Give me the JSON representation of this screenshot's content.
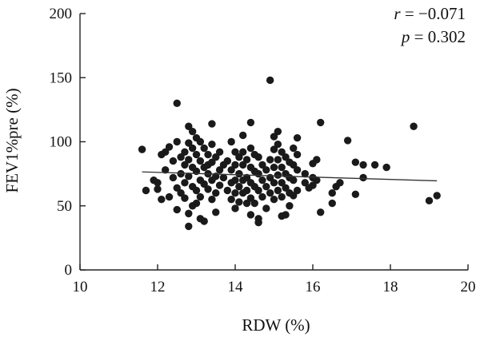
{
  "chart_data": {
    "type": "scatter",
    "xlabel": "RDW (%)",
    "ylabel": "FEV1%pre (%)",
    "xlim": [
      10,
      20
    ],
    "ylim": [
      0,
      200
    ],
    "xticks": [
      "10",
      "12",
      "14",
      "16",
      "18",
      "20"
    ],
    "yticks": [
      "0",
      "50",
      "100",
      "150",
      "200"
    ],
    "grid": false,
    "legend": "none",
    "annotations": {
      "r_var": "r",
      "r_value": " = −0.071",
      "p_var": "p",
      "p_value": " = 0.302"
    },
    "trendline": {
      "x": [
        11.6,
        19.2
      ],
      "y": [
        76.5,
        69.5
      ]
    },
    "colors": {
      "points": "#1a1a1a",
      "trendline": "#333333",
      "axis": "#222222"
    },
    "points": [
      [
        11.6,
        94
      ],
      [
        11.7,
        62
      ],
      [
        11.9,
        70
      ],
      [
        12.0,
        68
      ],
      [
        12.0,
        63
      ],
      [
        12.1,
        55
      ],
      [
        12.1,
        90
      ],
      [
        12.2,
        92
      ],
      [
        12.2,
        78
      ],
      [
        12.3,
        57
      ],
      [
        12.3,
        96
      ],
      [
        12.4,
        85
      ],
      [
        12.4,
        72
      ],
      [
        12.5,
        64
      ],
      [
        12.5,
        100
      ],
      [
        12.5,
        130
      ],
      [
        12.5,
        47
      ],
      [
        12.6,
        88
      ],
      [
        12.6,
        75
      ],
      [
        12.6,
        60
      ],
      [
        12.7,
        92
      ],
      [
        12.7,
        82
      ],
      [
        12.7,
        68
      ],
      [
        12.7,
        56
      ],
      [
        12.8,
        112
      ],
      [
        12.8,
        99
      ],
      [
        12.8,
        86
      ],
      [
        12.8,
        73
      ],
      [
        12.8,
        44
      ],
      [
        12.8,
        34
      ],
      [
        12.9,
        108
      ],
      [
        12.9,
        95
      ],
      [
        12.9,
        80
      ],
      [
        12.9,
        65
      ],
      [
        12.9,
        50
      ],
      [
        13.0,
        103
      ],
      [
        13.0,
        90
      ],
      [
        13.0,
        77
      ],
      [
        13.0,
        62
      ],
      [
        13.0,
        52
      ],
      [
        13.1,
        100
      ],
      [
        13.1,
        85
      ],
      [
        13.1,
        70
      ],
      [
        13.1,
        57
      ],
      [
        13.1,
        40
      ],
      [
        13.2,
        95
      ],
      [
        13.2,
        80
      ],
      [
        13.2,
        67
      ],
      [
        13.2,
        38
      ],
      [
        13.3,
        90
      ],
      [
        13.3,
        82
      ],
      [
        13.3,
        75
      ],
      [
        13.3,
        63
      ],
      [
        13.4,
        114
      ],
      [
        13.4,
        98
      ],
      [
        13.4,
        84
      ],
      [
        13.4,
        70
      ],
      [
        13.4,
        55
      ],
      [
        13.5,
        88
      ],
      [
        13.5,
        73
      ],
      [
        13.5,
        60
      ],
      [
        13.5,
        45
      ],
      [
        13.6,
        92
      ],
      [
        13.6,
        78
      ],
      [
        13.6,
        66
      ],
      [
        13.7,
        82
      ],
      [
        13.7,
        72
      ],
      [
        13.8,
        85
      ],
      [
        13.8,
        62
      ],
      [
        13.9,
        100
      ],
      [
        13.9,
        78
      ],
      [
        13.9,
        68
      ],
      [
        13.9,
        55
      ],
      [
        14.0,
        92
      ],
      [
        14.0,
        82
      ],
      [
        14.0,
        70
      ],
      [
        14.0,
        60
      ],
      [
        14.0,
        48
      ],
      [
        14.1,
        88
      ],
      [
        14.1,
        75
      ],
      [
        14.1,
        65
      ],
      [
        14.1,
        53
      ],
      [
        14.2,
        105
      ],
      [
        14.2,
        92
      ],
      [
        14.2,
        82
      ],
      [
        14.2,
        70
      ],
      [
        14.2,
        60
      ],
      [
        14.3,
        86
      ],
      [
        14.3,
        72
      ],
      [
        14.3,
        62
      ],
      [
        14.3,
        52
      ],
      [
        14.4,
        115
      ],
      [
        14.4,
        95
      ],
      [
        14.4,
        80
      ],
      [
        14.4,
        68
      ],
      [
        14.4,
        56
      ],
      [
        14.4,
        43
      ],
      [
        14.5,
        90
      ],
      [
        14.5,
        77
      ],
      [
        14.5,
        65
      ],
      [
        14.5,
        52
      ],
      [
        14.6,
        88
      ],
      [
        14.6,
        75
      ],
      [
        14.6,
        62
      ],
      [
        14.6,
        40
      ],
      [
        14.6,
        37
      ],
      [
        14.7,
        82
      ],
      [
        14.7,
        70
      ],
      [
        14.7,
        57
      ],
      [
        14.8,
        78
      ],
      [
        14.8,
        65
      ],
      [
        14.8,
        48
      ],
      [
        14.9,
        148
      ],
      [
        14.9,
        86
      ],
      [
        14.9,
        72
      ],
      [
        14.9,
        60
      ],
      [
        15.0,
        104
      ],
      [
        15.0,
        94
      ],
      [
        15.0,
        80
      ],
      [
        15.0,
        68
      ],
      [
        15.0,
        55
      ],
      [
        15.1,
        108
      ],
      [
        15.1,
        98
      ],
      [
        15.1,
        86
      ],
      [
        15.1,
        74
      ],
      [
        15.1,
        62
      ],
      [
        15.2,
        92
      ],
      [
        15.2,
        80
      ],
      [
        15.2,
        68
      ],
      [
        15.2,
        57
      ],
      [
        15.2,
        42
      ],
      [
        15.3,
        88
      ],
      [
        15.3,
        75
      ],
      [
        15.3,
        64
      ],
      [
        15.3,
        43
      ],
      [
        15.4,
        84
      ],
      [
        15.4,
        72
      ],
      [
        15.4,
        60
      ],
      [
        15.4,
        50
      ],
      [
        15.5,
        95
      ],
      [
        15.5,
        82
      ],
      [
        15.5,
        70
      ],
      [
        15.5,
        58
      ],
      [
        15.6,
        103
      ],
      [
        15.6,
        90
      ],
      [
        15.6,
        78
      ],
      [
        15.6,
        62
      ],
      [
        15.8,
        75
      ],
      [
        15.8,
        68
      ],
      [
        15.9,
        64
      ],
      [
        16.0,
        83
      ],
      [
        16.0,
        72
      ],
      [
        16.0,
        66
      ],
      [
        16.1,
        86
      ],
      [
        16.1,
        70
      ],
      [
        16.2,
        115
      ],
      [
        16.2,
        45
      ],
      [
        16.5,
        60
      ],
      [
        16.5,
        52
      ],
      [
        16.6,
        65
      ],
      [
        16.7,
        68
      ],
      [
        16.9,
        101
      ],
      [
        17.1,
        84
      ],
      [
        17.1,
        59
      ],
      [
        17.3,
        82
      ],
      [
        17.3,
        72
      ],
      [
        17.6,
        82
      ],
      [
        17.9,
        80
      ],
      [
        18.6,
        112
      ],
      [
        19.0,
        54
      ],
      [
        19.2,
        58
      ]
    ]
  }
}
